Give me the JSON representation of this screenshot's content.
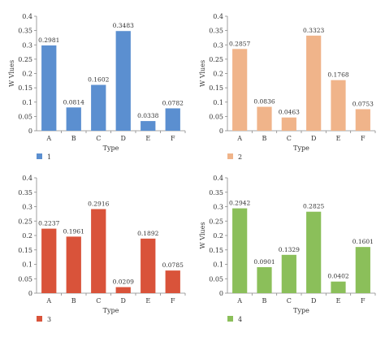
{
  "chart_data": [
    {
      "type": "bar",
      "categories": [
        "A",
        "B",
        "C",
        "D",
        "E",
        "F"
      ],
      "series": [
        {
          "name": "1",
          "values": [
            0.2981,
            0.0814,
            0.1602,
            0.3483,
            0.0338,
            0.0782
          ]
        }
      ],
      "data_labels": [
        "0.2981",
        "0.0814",
        "0.1602",
        "0.3483",
        "0.0338",
        "0.0782"
      ],
      "xlabel": "Type",
      "ylabel": "W Vlues",
      "ylim": [
        0,
        0.4
      ],
      "yticks": [
        "0",
        "0.05",
        "0.1",
        "0.15",
        "0.2",
        "0.25",
        "0.3",
        "0.35",
        "0.4"
      ],
      "color": "#5b8fd0",
      "legend": "bottom-left",
      "grid": false
    },
    {
      "type": "bar",
      "categories": [
        "A",
        "B",
        "C",
        "D",
        "E",
        "F"
      ],
      "series": [
        {
          "name": "2",
          "values": [
            0.2857,
            0.0836,
            0.0463,
            0.3323,
            0.1768,
            0.0753
          ]
        }
      ],
      "data_labels": [
        "0.2857",
        "0.0836",
        "0.0463",
        "0.3323",
        "0.1768",
        "0.0753"
      ],
      "xlabel": "Type",
      "ylabel": "W Vlues",
      "ylim": [
        0,
        0.4
      ],
      "yticks": [
        "0",
        "0.05",
        "0.1",
        "0.15",
        "0.2",
        "0.25",
        "0.3",
        "0.35",
        "0.4"
      ],
      "color": "#f0b48a",
      "legend": "bottom-left",
      "grid": false
    },
    {
      "type": "bar",
      "categories": [
        "A",
        "B",
        "C",
        "D",
        "E",
        "F"
      ],
      "series": [
        {
          "name": "3",
          "values": [
            0.2237,
            0.1961,
            0.2916,
            0.0209,
            0.1892,
            0.0785
          ]
        }
      ],
      "data_labels": [
        "0.2237",
        "0.1961",
        "0.2916",
        "0.0209",
        "0.1892",
        "0.0785"
      ],
      "xlabel": "Type",
      "ylabel": "",
      "ylim": [
        0,
        0.4
      ],
      "yticks": [
        "0",
        "0.05",
        "0.1",
        "0.15",
        "0.2",
        "0.25",
        "0.3",
        "0.35",
        "0.4"
      ],
      "color": "#d9533a",
      "legend": "bottom-left",
      "grid": false
    },
    {
      "type": "bar",
      "categories": [
        "A",
        "B",
        "C",
        "D",
        "E",
        "F"
      ],
      "series": [
        {
          "name": "4",
          "values": [
            0.2942,
            0.0901,
            0.1329,
            0.2825,
            0.0402,
            0.1601
          ]
        }
      ],
      "data_labels": [
        "0.2942",
        "0.0901",
        "0.1329",
        "0.2825",
        "0.0402",
        "0.1601"
      ],
      "xlabel": "Type",
      "ylabel": "W Vlues",
      "ylim": [
        0,
        0.4
      ],
      "yticks": [
        "0",
        "0.05",
        "0.1",
        "0.15",
        "0.2",
        "0.25",
        "0.3",
        "0.35",
        "0.4"
      ],
      "color": "#8bbf5a",
      "legend": "bottom-left",
      "grid": false
    }
  ]
}
